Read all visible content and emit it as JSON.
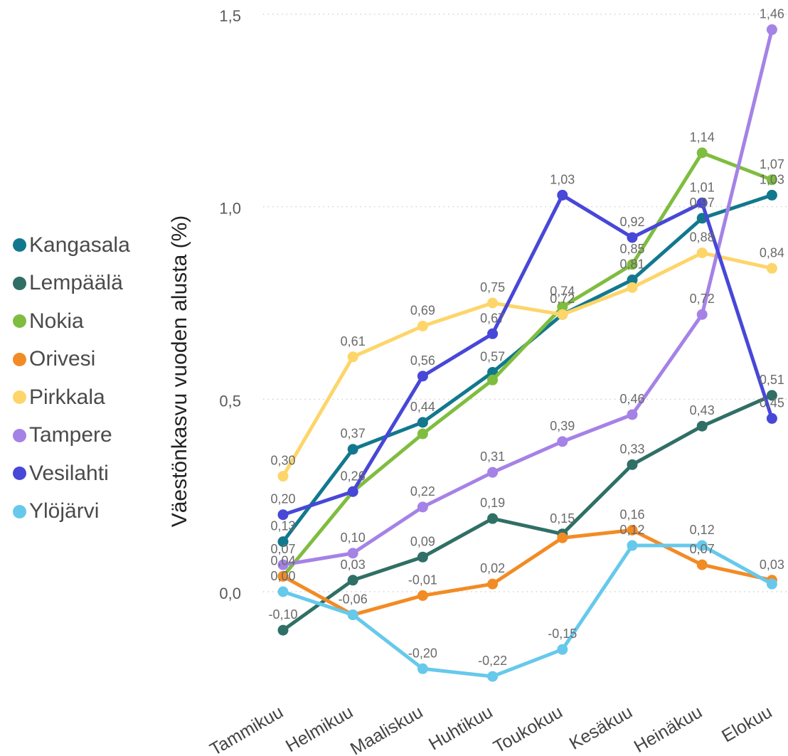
{
  "chart_data": {
    "type": "line",
    "title": "",
    "xlabel": "",
    "ylabel": "Väestönkasvu vuoden alusta (%)",
    "ylim": [
      -0.32,
      1.5
    ],
    "y_ticks": [
      "1,5",
      "1,0",
      "0,5",
      "0,0"
    ],
    "y_tick_values": [
      1.5,
      1.0,
      0.5,
      0.0
    ],
    "grid": "horizontal dotted",
    "legend_position": "left",
    "categories": [
      "Tammikuu",
      "Helmikuu",
      "Maaliskuu",
      "Huhtikuu",
      "Toukokuu",
      "Kesäkuu",
      "Heinäkuu",
      "Elokuu"
    ],
    "series": [
      {
        "name": "Kangasala",
        "color": "#12788e",
        "values": [
          0.13,
          0.37,
          0.44,
          0.57,
          0.72,
          0.81,
          0.97,
          1.03
        ],
        "labels": [
          "0,13",
          "0,37",
          "0,44",
          "0,57",
          "0,72",
          "0,81",
          "0,97",
          "1,03"
        ]
      },
      {
        "name": "Lempäälä",
        "color": "#2f6f66",
        "values": [
          -0.1,
          0.03,
          0.09,
          0.19,
          0.15,
          0.33,
          0.43,
          0.51
        ],
        "labels": [
          "-0,10",
          "0,03",
          "0,09",
          "0,19",
          "0,15",
          "0,33",
          "0,43",
          "0,51"
        ]
      },
      {
        "name": "Nokia",
        "color": "#7fbd3f",
        "values": [
          0.04,
          0.26,
          0.41,
          0.55,
          0.74,
          0.85,
          1.14,
          1.07
        ],
        "labels": [
          "0,04",
          "",
          "",
          "",
          "0,74",
          "0,85",
          "1,14",
          "1,07"
        ]
      },
      {
        "name": "Orivesi",
        "color": "#f28b25",
        "values": [
          0.04,
          -0.06,
          -0.01,
          0.02,
          0.14,
          0.16,
          0.07,
          0.03
        ],
        "labels": [
          "",
          "",
          "-0,01",
          "0,02",
          "",
          "0,16",
          "0,07",
          "0,03"
        ]
      },
      {
        "name": "Pirkkala",
        "color": "#fdd569",
        "values": [
          0.3,
          0.61,
          0.69,
          0.75,
          0.72,
          0.79,
          0.88,
          0.84
        ],
        "labels": [
          "0,30",
          "0,61",
          "0,69",
          "0,75",
          "",
          "",
          "0,88",
          "0,84"
        ]
      },
      {
        "name": "Tampere",
        "color": "#a582e6",
        "values": [
          0.07,
          0.1,
          0.22,
          0.31,
          0.39,
          0.46,
          0.72,
          1.46
        ],
        "labels": [
          "0,07",
          "0,10",
          "0,22",
          "0,31",
          "0,39",
          "0,46",
          "0,72",
          "1,46"
        ]
      },
      {
        "name": "Vesilahti",
        "color": "#4747d8",
        "values": [
          0.2,
          0.26,
          0.56,
          0.67,
          1.03,
          0.92,
          1.01,
          0.45
        ],
        "labels": [
          "0,20",
          "0,26",
          "0,56",
          "0,67",
          "1,03",
          "0,92",
          "1,01",
          "0,45"
        ]
      },
      {
        "name": "Ylöjärvi",
        "color": "#66c9eb",
        "values": [
          0.0,
          -0.06,
          -0.2,
          -0.22,
          -0.15,
          0.12,
          0.12,
          0.02
        ],
        "labels": [
          "0,00",
          "-0,06",
          "-0,20",
          "-0,22",
          "-0,15",
          "0,12",
          "0,12",
          ""
        ]
      }
    ]
  }
}
